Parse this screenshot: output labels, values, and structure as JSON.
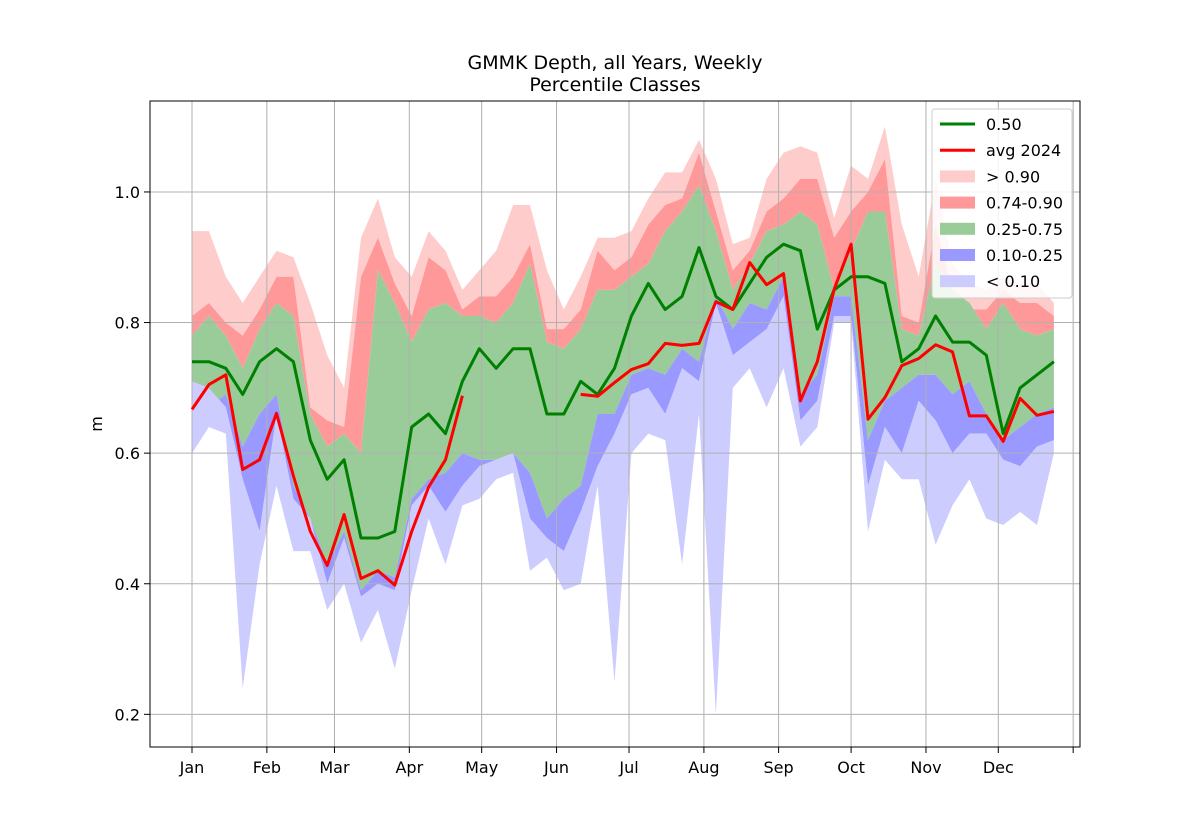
{
  "chart_data": {
    "type": "area",
    "title_line1": "GMMK Depth, all Years, Weekly",
    "title_line2": "Percentile Classes",
    "ylabel": "m",
    "xlabel": "",
    "xlim": [
      0,
      53
    ],
    "ylim": [
      0.15,
      1.15
    ],
    "grid": true,
    "legend_position": "top-right",
    "x_ticks": [
      {
        "x": 0,
        "label": "Jan"
      },
      {
        "x": 4.43,
        "label": "Feb"
      },
      {
        "x": 8.43,
        "label": "Mar"
      },
      {
        "x": 12.86,
        "label": "Apr"
      },
      {
        "x": 17.14,
        "label": "May"
      },
      {
        "x": 21.57,
        "label": "Jun"
      },
      {
        "x": 25.86,
        "label": "Jul"
      },
      {
        "x": 30.29,
        "label": "Aug"
      },
      {
        "x": 34.71,
        "label": "Sep"
      },
      {
        "x": 39,
        "label": "Oct"
      },
      {
        "x": 43.43,
        "label": "Nov"
      },
      {
        "x": 47.71,
        "label": "Dec"
      },
      {
        "x": 52.14,
        "label": ""
      }
    ],
    "y_ticks": [
      {
        "y": 0.2,
        "label": "0.2"
      },
      {
        "y": 0.4,
        "label": "0.4"
      },
      {
        "y": 0.6,
        "label": "0.6"
      },
      {
        "y": 0.8,
        "label": "0.8"
      },
      {
        "y": 1.0,
        "label": "1.0"
      }
    ],
    "weeks": [
      0,
      1,
      2,
      3,
      4,
      5,
      6,
      7,
      8,
      9,
      10,
      11,
      12,
      13,
      14,
      15,
      16,
      17,
      18,
      19,
      20,
      21,
      22,
      23,
      24,
      25,
      26,
      27,
      28,
      29,
      30,
      31,
      32,
      33,
      34,
      35,
      36,
      37,
      38,
      39,
      40,
      41,
      42,
      43,
      44,
      45,
      46,
      47,
      48,
      49,
      50,
      51
    ],
    "p_min": [
      0.6,
      0.64,
      0.63,
      0.24,
      0.43,
      0.55,
      0.45,
      0.45,
      0.36,
      0.4,
      0.31,
      0.36,
      0.27,
      0.39,
      0.5,
      0.43,
      0.52,
      0.53,
      0.56,
      0.57,
      0.42,
      0.44,
      0.39,
      0.4,
      0.55,
      0.25,
      0.6,
      0.63,
      0.62,
      0.43,
      0.66,
      0.2,
      0.7,
      0.73,
      0.67,
      0.73,
      0.61,
      0.64,
      0.8,
      0.8,
      0.48,
      0.59,
      0.56,
      0.56,
      0.46,
      0.52,
      0.56,
      0.5,
      0.49,
      0.51,
      0.49,
      0.6
    ],
    "p10": [
      0.71,
      0.7,
      0.67,
      0.56,
      0.48,
      0.66,
      0.53,
      0.5,
      0.4,
      0.47,
      0.38,
      0.4,
      0.39,
      0.52,
      0.55,
      0.51,
      0.55,
      0.58,
      0.59,
      0.6,
      0.5,
      0.47,
      0.45,
      0.51,
      0.58,
      0.63,
      0.69,
      0.7,
      0.66,
      0.73,
      0.71,
      0.83,
      0.75,
      0.77,
      0.79,
      0.84,
      0.65,
      0.68,
      0.81,
      0.81,
      0.55,
      0.64,
      0.6,
      0.68,
      0.65,
      0.6,
      0.63,
      0.63,
      0.59,
      0.58,
      0.61,
      0.62
    ],
    "p25": [
      0.7,
      0.67,
      0.69,
      0.61,
      0.66,
      0.69,
      0.55,
      0.5,
      0.43,
      0.48,
      0.39,
      0.42,
      0.41,
      0.53,
      0.56,
      0.57,
      0.6,
      0.59,
      0.59,
      0.6,
      0.57,
      0.5,
      0.53,
      0.55,
      0.66,
      0.66,
      0.72,
      0.73,
      0.72,
      0.76,
      0.74,
      0.84,
      0.79,
      0.83,
      0.82,
      0.87,
      0.69,
      0.72,
      0.84,
      0.84,
      0.62,
      0.68,
      0.7,
      0.72,
      0.72,
      0.69,
      0.71,
      0.66,
      0.62,
      0.64,
      0.66,
      0.67
    ],
    "p75": [
      0.78,
      0.81,
      0.78,
      0.73,
      0.79,
      0.83,
      0.81,
      0.66,
      0.61,
      0.63,
      0.6,
      0.88,
      0.83,
      0.77,
      0.82,
      0.83,
      0.81,
      0.81,
      0.8,
      0.83,
      0.89,
      0.77,
      0.76,
      0.79,
      0.85,
      0.85,
      0.87,
      0.89,
      0.94,
      0.97,
      1.01,
      0.94,
      0.85,
      0.89,
      0.94,
      0.95,
      0.97,
      0.95,
      0.85,
      0.91,
      0.97,
      0.97,
      0.79,
      0.78,
      0.89,
      0.85,
      0.83,
      0.79,
      0.83,
      0.79,
      0.78,
      0.79
    ],
    "p90": [
      0.81,
      0.83,
      0.8,
      0.78,
      0.82,
      0.87,
      0.87,
      0.67,
      0.65,
      0.64,
      0.87,
      0.93,
      0.86,
      0.81,
      0.9,
      0.88,
      0.82,
      0.84,
      0.84,
      0.87,
      0.92,
      0.79,
      0.79,
      0.82,
      0.91,
      0.88,
      0.9,
      0.95,
      0.98,
      0.99,
      1.06,
      0.97,
      0.88,
      0.91,
      0.97,
      0.99,
      1.02,
      1.02,
      0.93,
      0.97,
      1.0,
      1.05,
      0.81,
      0.8,
      0.95,
      0.85,
      0.82,
      0.82,
      0.85,
      0.83,
      0.83,
      0.81
    ],
    "p_max": [
      0.94,
      0.94,
      0.87,
      0.83,
      0.87,
      0.91,
      0.9,
      0.83,
      0.75,
      0.7,
      0.93,
      0.99,
      0.9,
      0.87,
      0.94,
      0.91,
      0.85,
      0.88,
      0.91,
      0.98,
      0.98,
      0.88,
      0.82,
      0.87,
      0.93,
      0.93,
      0.94,
      0.99,
      1.03,
      1.03,
      1.08,
      1.02,
      0.92,
      0.93,
      1.02,
      1.06,
      1.07,
      1.06,
      0.96,
      1.04,
      1.02,
      1.1,
      0.95,
      0.87,
      1.02,
      0.89,
      0.86,
      0.85,
      0.87,
      0.86,
      0.86,
      0.83
    ],
    "series": [
      {
        "name": "0.50",
        "color": "#008000",
        "values": [
          0.74,
          0.74,
          0.73,
          0.69,
          0.74,
          0.76,
          0.74,
          0.62,
          0.56,
          0.59,
          0.47,
          0.47,
          0.48,
          0.64,
          0.66,
          0.63,
          0.71,
          0.76,
          0.73,
          0.76,
          0.76,
          0.66,
          0.66,
          0.71,
          0.69,
          0.73,
          0.81,
          0.86,
          0.82,
          0.84,
          0.915,
          0.84,
          0.82,
          0.86,
          0.9,
          0.92,
          0.91,
          0.79,
          0.85,
          0.87,
          0.87,
          0.86,
          0.74,
          0.76,
          0.81,
          0.77,
          0.77,
          0.75,
          0.63,
          0.7,
          0.72,
          0.74
        ]
      },
      {
        "name": "avg 2024",
        "color": "#ff0000",
        "values": [
          0.667,
          0.705,
          0.72,
          0.575,
          0.59,
          0.661,
          0.565,
          0.48,
          0.428,
          0.506,
          0.408,
          0.42,
          0.398,
          0.48,
          0.548,
          0.59,
          0.688,
          null,
          null,
          null,
          null,
          null,
          null,
          0.69,
          0.687,
          0.708,
          0.728,
          0.737,
          0.768,
          0.765,
          0.768,
          0.832,
          0.82,
          0.892,
          0.858,
          0.875,
          0.68,
          0.74,
          0.851,
          0.92,
          0.652,
          0.685,
          0.734,
          0.745,
          0.766,
          0.755,
          0.657,
          0.657,
          0.618,
          0.684,
          0.658,
          0.664
        ]
      }
    ],
    "bands": [
      {
        "name": "> 0.90",
        "color": "#ffcccc"
      },
      {
        "name": "0.74-0.90",
        "color": "#ff9999"
      },
      {
        "name": "0.25-0.75",
        "color": "#99cc99"
      },
      {
        "name": "0.10-0.25",
        "color": "#9999ff"
      },
      {
        "name": "< 0.10",
        "color": "#ccccff"
      }
    ]
  }
}
